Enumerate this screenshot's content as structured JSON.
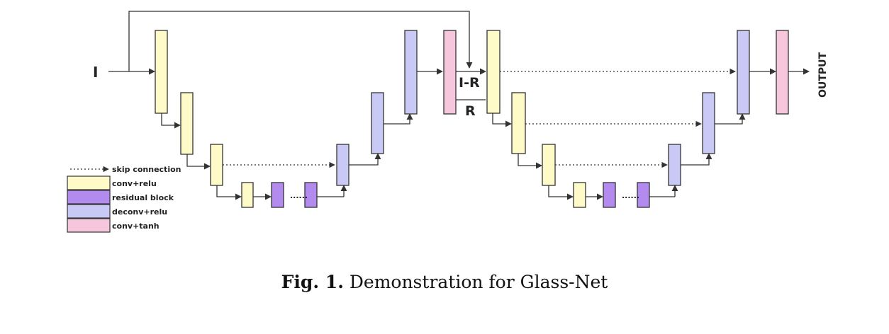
{
  "colors": {
    "conv_relu": "#fffbc8",
    "residual_block": "#b38bee",
    "deconv_relu": "#c8c9f4",
    "conv_tanh": "#f5c6dc",
    "stroke": "#333333"
  },
  "labels": {
    "input": "I",
    "i_minus_r": "I-R",
    "r": "R",
    "output": "OUTPUT",
    "ellipsis": "......"
  },
  "legend": {
    "skip_connection": "skip connection",
    "conv_relu": "conv+relu",
    "residual_block": "residual block",
    "deconv_relu": "deconv+relu",
    "conv_tanh": "conv+tanh"
  },
  "caption": {
    "prefix": "Fig. 1.",
    "text": "Demonstration for Glass-Net"
  }
}
